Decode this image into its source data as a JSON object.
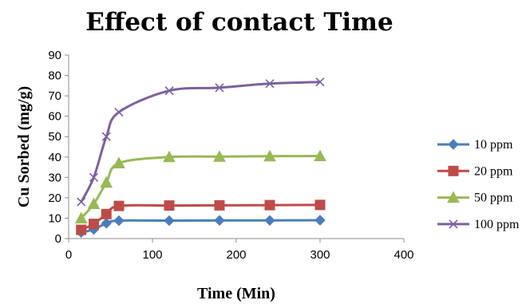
{
  "chart_data": {
    "type": "line",
    "title": "Effect of contact Time",
    "xlabel": "Time (Min)",
    "ylabel": "Cu  Sorbed (mg/g)",
    "xlim": [
      0,
      400
    ],
    "ylim": [
      0,
      90
    ],
    "xticks": [
      0,
      100,
      200,
      300,
      400
    ],
    "yticks": [
      0,
      10,
      20,
      30,
      40,
      50,
      60,
      70,
      80,
      90
    ],
    "grid": false,
    "smooth": true,
    "legend_position": "right",
    "x": [
      15,
      30,
      45,
      60,
      120,
      180,
      240,
      300
    ],
    "series": [
      {
        "name": "10 ppm",
        "color": "#4a7ebb",
        "marker": "diamond",
        "values": [
          3,
          4.5,
          7.5,
          8.8,
          8.8,
          8.9,
          8.9,
          9
        ]
      },
      {
        "name": "20 ppm",
        "color": "#be4b48",
        "marker": "square",
        "values": [
          4.3,
          7.2,
          12,
          16,
          16.2,
          16.3,
          16.4,
          16.5
        ]
      },
      {
        "name": "50 ppm",
        "color": "#98b954",
        "marker": "triangle",
        "values": [
          10,
          17,
          27.5,
          37,
          40,
          40.2,
          40.4,
          40.5
        ]
      },
      {
        "name": "100 ppm",
        "color": "#7d60a0",
        "marker": "x",
        "values": [
          18,
          30,
          50,
          62,
          72.5,
          74,
          76,
          76.8
        ]
      }
    ]
  }
}
